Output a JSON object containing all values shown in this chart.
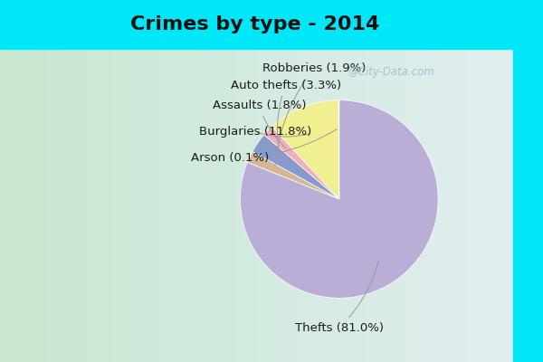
{
  "title": "Crimes by type - 2014",
  "slices": [
    {
      "label": "Thefts",
      "pct": 81.0,
      "color": "#baaed6"
    },
    {
      "label": "Robberies",
      "pct": 1.9,
      "color": "#d4b896"
    },
    {
      "label": "Auto thefts",
      "pct": 3.3,
      "color": "#8899cc"
    },
    {
      "label": "Assaults",
      "pct": 1.8,
      "color": "#f0b0b8"
    },
    {
      "label": "Burglaries",
      "pct": 11.8,
      "color": "#f0f090"
    },
    {
      "label": "Arson",
      "pct": 0.1,
      "color": "#b8d4b8"
    }
  ],
  "bg_cyan": "#00e8f8",
  "bg_body": "#d8eee0",
  "bg_right_cyan": "#00e8f8",
  "title_fontsize": 16,
  "label_fontsize": 9.5,
  "watermark": "@City-Data.com"
}
